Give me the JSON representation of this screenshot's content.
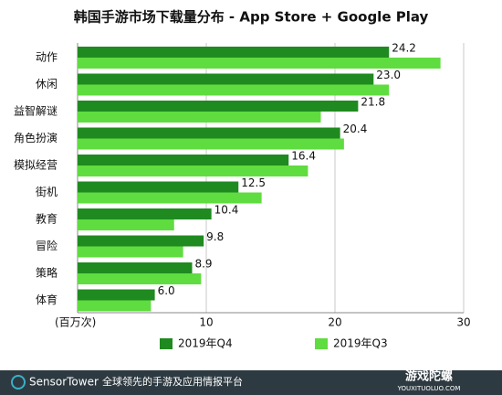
{
  "chart_data": {
    "type": "bar",
    "orientation": "horizontal",
    "title": "韩国手游市场下载量分布 - App Store + Google Play",
    "unit_label": "(百万次)",
    "categories": [
      "动作",
      "休闲",
      "益智解谜",
      "角色扮演",
      "模拟经营",
      "街机",
      "教育",
      "冒险",
      "策略",
      "体育"
    ],
    "series": [
      {
        "name": "2019年Q4",
        "color": "#1f8a1f",
        "values": [
          24.2,
          23.0,
          21.8,
          20.4,
          16.4,
          12.5,
          10.4,
          9.8,
          8.9,
          6.0
        ],
        "value_labels": [
          "24.2",
          "23.0",
          "21.8",
          "20.4",
          "16.4",
          "12.5",
          "10.4",
          "9.8",
          "8.9",
          "6.0"
        ]
      },
      {
        "name": "2019年Q3",
        "color": "#5fdc3f",
        "values": [
          28.2,
          24.2,
          18.9,
          20.7,
          17.9,
          14.3,
          7.5,
          8.2,
          9.6,
          5.7
        ]
      }
    ],
    "xlim": [
      0,
      30
    ],
    "xticks": [
      10,
      20,
      30
    ],
    "grid": true,
    "footer": {
      "brand": "SensorTower",
      "tagline": "全球领先的手游及应用情报平台",
      "watermark": "游戏陀螺",
      "watermark_url": "YOUXITUOLUO.COM"
    }
  }
}
